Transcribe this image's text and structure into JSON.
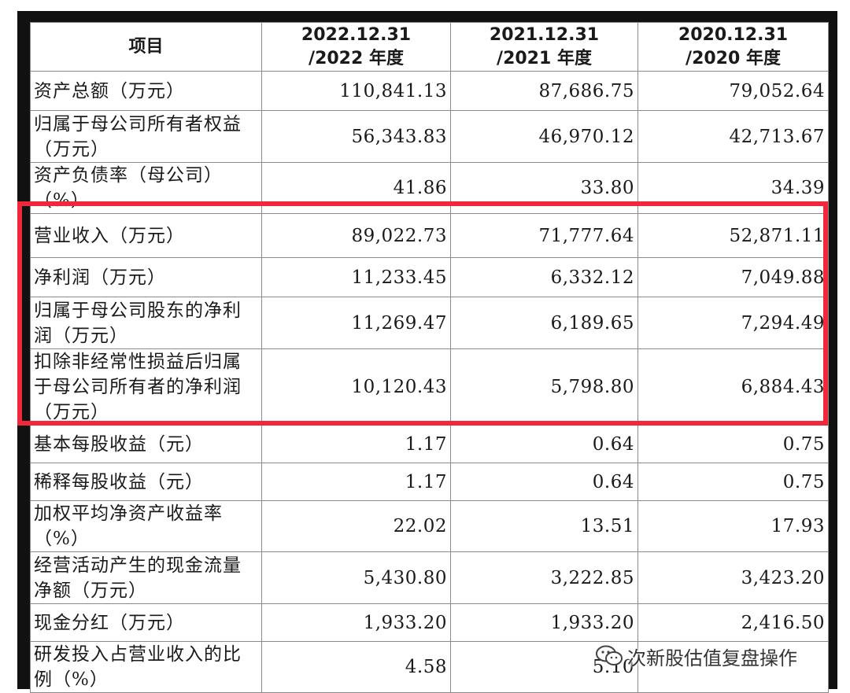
{
  "table": {
    "headers": [
      {
        "line1": "项目",
        "line2": ""
      },
      {
        "line1": "2022.12.31",
        "line2": "/2022 年度"
      },
      {
        "line1": "2021.12.31",
        "line2": "/2021 年度"
      },
      {
        "line1": "2020.12.31",
        "line2": "/2020 年度"
      }
    ],
    "rows": [
      {
        "label": [
          "资产总额（万元）"
        ],
        "values": [
          "110,841.13",
          "87,686.75",
          "79,052.64"
        ]
      },
      {
        "label": [
          "归属于母公司所有者权益",
          "（万元）"
        ],
        "values": [
          "56,343.83",
          "46,970.12",
          "42,713.67"
        ]
      },
      {
        "label": [
          "资产负债率（母公司）（%）"
        ],
        "values": [
          "41.86",
          "33.80",
          "34.39"
        ]
      },
      {
        "label": [
          "营业收入（万元）"
        ],
        "values": [
          "89,022.73",
          "71,777.64",
          "52,871.11"
        ]
      },
      {
        "label": [
          "净利润（万元）"
        ],
        "values": [
          "11,233.45",
          "6,332.12",
          "7,049.88"
        ]
      },
      {
        "label": [
          "归属于母公司股东的净利",
          "润（万元）"
        ],
        "values": [
          "11,269.47",
          "6,189.65",
          "7,294.49"
        ]
      },
      {
        "label": [
          "扣除非经常性损益后归属",
          "于母公司所有者的净利润",
          "（万元）"
        ],
        "values": [
          "10,120.43",
          "5,798.80",
          "6,884.43"
        ]
      },
      {
        "label": [
          "基本每股收益（元）"
        ],
        "values": [
          "1.17",
          "0.64",
          "0.75"
        ]
      },
      {
        "label": [
          "稀释每股收益（元）"
        ],
        "values": [
          "1.17",
          "0.64",
          "0.75"
        ]
      },
      {
        "label": [
          "加权平均净资产收益率（%）"
        ],
        "values": [
          "22.02",
          "13.51",
          "17.93"
        ]
      },
      {
        "label": [
          "经营活动产生的现金流量",
          "净额（万元）"
        ],
        "values": [
          "5,430.80",
          "3,222.85",
          "3,423.20"
        ]
      },
      {
        "label": [
          "现金分红（万元）"
        ],
        "values": [
          "1,933.20",
          "1,933.20",
          "2,416.50"
        ]
      },
      {
        "label": [
          "研发投入占营业收入的比",
          "例（%）"
        ],
        "values": [
          "4.58",
          "5.10",
          ""
        ]
      }
    ],
    "highlighted_rows": [
      3,
      4,
      5,
      6
    ]
  },
  "watermark": {
    "text": "次新股估值复盘操作",
    "icon": "wechat-icon"
  },
  "colors": {
    "highlight": "#f0283c",
    "frame": "#111111"
  }
}
